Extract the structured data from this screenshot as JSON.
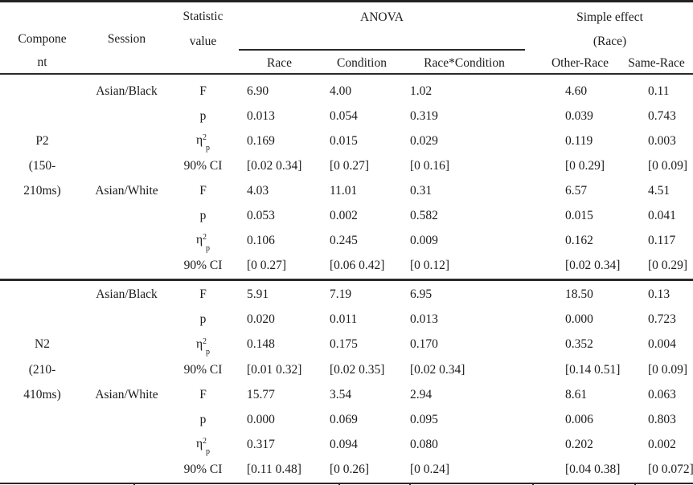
{
  "header": {
    "component": [
      "Compone",
      "nt"
    ],
    "session": "Session",
    "statistic": [
      "Statistic",
      "value"
    ],
    "anova": "ANOVA",
    "anova_columns": [
      "Race",
      "Condition",
      "Race*Condition"
    ],
    "simple_effect": [
      "Simple effect",
      "(Race)"
    ],
    "simple_effect_columns": [
      "Other-Race",
      "Same-Race"
    ]
  },
  "sections": [
    {
      "component": "P2 (150-210ms)",
      "rows": [
        {
          "component": "",
          "session": "Asian/Black",
          "stat": {
            "base": "F"
          },
          "values": [
            "6.90",
            "4.00",
            "1.02",
            "4.60",
            "0.11"
          ]
        },
        {
          "component": "",
          "session": "",
          "stat": {
            "base": "p"
          },
          "values": [
            "0.013",
            "0.054",
            "0.319",
            "0.039",
            "0.743"
          ]
        },
        {
          "component": "P2",
          "session": "",
          "stat": {
            "base": "η",
            "sup": "2",
            "sub": "p"
          },
          "values": [
            "0.169",
            "0.015",
            "0.029",
            "0.119",
            "0.003"
          ]
        },
        {
          "component": "(150-",
          "session": "",
          "stat": {
            "base": "90% CI"
          },
          "values": [
            "[0.02 0.34]",
            "[0 0.27]",
            "[0 0.16]",
            "[0 0.29]",
            "[0 0.09]"
          ]
        },
        {
          "component": "210ms)",
          "session": "Asian/White",
          "stat": {
            "base": "F"
          },
          "values": [
            "4.03",
            "11.01",
            "0.31",
            "6.57",
            "4.51"
          ]
        },
        {
          "component": "",
          "session": "",
          "stat": {
            "base": "p"
          },
          "values": [
            "0.053",
            "0.002",
            "0.582",
            "0.015",
            "0.041"
          ]
        },
        {
          "component": "",
          "session": "",
          "stat": {
            "base": "η",
            "sup": "2",
            "sub": "p"
          },
          "values": [
            "0.106",
            "0.245",
            "0.009",
            "0.162",
            "0.117"
          ]
        },
        {
          "component": "",
          "session": "",
          "stat": {
            "base": "90% CI"
          },
          "values": [
            "[0 0.27]",
            "[0.06 0.42]",
            "[0 0.12]",
            "[0.02 0.34]",
            "[0 0.29]"
          ]
        }
      ]
    },
    {
      "component": "N2 (210-410ms)",
      "rows": [
        {
          "component": "",
          "session": "Asian/Black",
          "stat": {
            "base": "F"
          },
          "values": [
            "5.91",
            "7.19",
            "6.95",
            "18.50",
            "0.13"
          ]
        },
        {
          "component": "",
          "session": "",
          "stat": {
            "base": "p"
          },
          "values": [
            "0.020",
            "0.011",
            "0.013",
            "0.000",
            "0.723"
          ]
        },
        {
          "component": "N2",
          "session": "",
          "stat": {
            "base": "η",
            "sup": "2",
            "sub": "p"
          },
          "values": [
            "0.148",
            "0.175",
            "0.170",
            "0.352",
            "0.004"
          ]
        },
        {
          "component": "(210-",
          "session": "",
          "stat": {
            "base": "90% CI"
          },
          "values": [
            "[0.01 0.32]",
            "[0.02 0.35]",
            "[0.02 0.34]",
            "[0.14 0.51]",
            "[0 0.09]"
          ]
        },
        {
          "component": "410ms)",
          "session": "Asian/White",
          "stat": {
            "base": "F"
          },
          "values": [
            "15.77",
            "3.54",
            "2.94",
            "8.61",
            "0.063"
          ]
        },
        {
          "component": "",
          "session": "",
          "stat": {
            "base": "p"
          },
          "values": [
            "0.000",
            "0.069",
            "0.095",
            "0.006",
            "0.803"
          ]
        },
        {
          "component": "",
          "session": "",
          "stat": {
            "base": "η",
            "sup": "2",
            "sub": "p"
          },
          "values": [
            "0.317",
            "0.094",
            "0.080",
            "0.202",
            "0.002"
          ]
        },
        {
          "component": "",
          "session": "",
          "stat": {
            "base": "90% CI"
          },
          "values": [
            "[0.11 0.48]",
            "[0 0.26]",
            "[0 0.24]",
            "[0.04 0.38]",
            "[0 0.072]"
          ]
        }
      ]
    }
  ],
  "colors": {
    "rule": "#2a2a2a",
    "text": "#1c1c1c",
    "background": "#ffffff"
  }
}
